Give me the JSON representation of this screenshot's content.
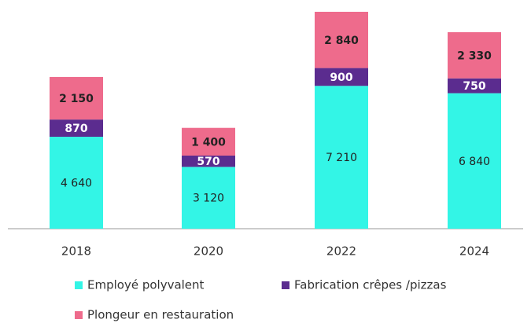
{
  "chart_data": {
    "type": "stacked_bar",
    "categories": [
      "2018",
      "2020",
      "2022",
      "2024"
    ],
    "series": [
      {
        "name": "Employé polyvalent",
        "color": "#33f5e6",
        "values": [
          4640,
          3120,
          7210,
          6840
        ],
        "value_labels": [
          "4 640",
          "3 120",
          "7 210",
          "6 840"
        ]
      },
      {
        "name": "Fabrication crêpes /pizzas",
        "color": "#5b2c8f",
        "values": [
          870,
          570,
          900,
          750
        ],
        "value_labels": [
          "870",
          "570",
          "900",
          "750"
        ]
      },
      {
        "name": "Plongeur en restauration",
        "color": "#ee6b8c",
        "values": [
          2150,
          1400,
          2840,
          2330
        ],
        "value_labels": [
          "2 150",
          "1 400",
          "2 840",
          "2 330"
        ]
      }
    ],
    "legend": "bottom"
  }
}
